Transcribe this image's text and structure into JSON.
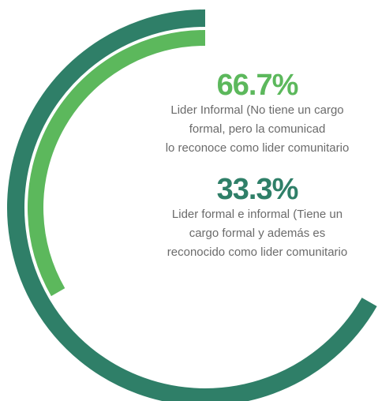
{
  "chart_data": {
    "type": "radial_bar",
    "ylim": [
      0,
      100
    ],
    "series": [
      {
        "name": "Lider Informal (No tiene un cargo\nformal, pero la comunicad\nlo reconoce como lider comunitario",
        "values": [
          66.7
        ],
        "value_labels": [
          "66.7%"
        ],
        "color": "#2f7f68",
        "label_color": "#5cb85c"
      },
      {
        "name": "Lider formal e informal (Tiene un\ncargo formal y además es\nreconocido como lider comunitario",
        "values": [
          33.3
        ],
        "value_labels": [
          "33.3%"
        ],
        "color": "#5cb85c",
        "label_color": "#2f7f68"
      }
    ]
  }
}
